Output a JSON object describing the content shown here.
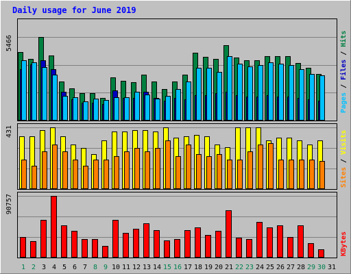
{
  "chart_data": {
    "type": "bar",
    "title": "Daily usage for June 2019",
    "days": [
      "1",
      "2",
      "3",
      "4",
      "5",
      "6",
      "7",
      "8",
      "9",
      "10",
      "11",
      "12",
      "13",
      "14",
      "15",
      "16",
      "17",
      "18",
      "19",
      "20",
      "21",
      "22",
      "23",
      "24",
      "25",
      "26",
      "27",
      "28",
      "29",
      "30",
      "31"
    ],
    "weekend_days": [
      "1",
      "2",
      "8",
      "9",
      "15",
      "16",
      "22",
      "23",
      "29",
      "30"
    ],
    "panels": [
      {
        "key": "hits",
        "max_label": "5466",
        "ymax": 5466,
        "axis_label_parts": [
          {
            "text": "Pages",
            "color": "#00c0ff"
          },
          {
            "text": " / ",
            "color": "#000000"
          },
          {
            "text": "Files",
            "color": "#0000c0"
          },
          {
            "text": " / ",
            "color": "#000000"
          },
          {
            "text": "Hits",
            "color": "#008040"
          }
        ],
        "series": [
          {
            "name": "Hits",
            "color": "#008040",
            "values": [
              4480,
              4030,
              5466,
              4250,
              2560,
              2100,
              1770,
              1770,
              1500,
              2820,
              2600,
              2500,
              2980,
              2560,
              2050,
              2560,
              2980,
              4430,
              4180,
              4050,
              4920,
              4130,
              3930,
              3930,
              4230,
              4230,
              4230,
              3780,
              3430,
              3030,
              0
            ]
          },
          {
            "name": "Files",
            "color": "#0000c0",
            "values": [
              3380,
              3680,
              3930,
              3380,
              1880,
              1380,
              1180,
              1180,
              1080,
              1980,
              1480,
              1480,
              1880,
              1480,
              1280,
              1480,
              1380,
              1680,
              1680,
              1780,
              1880,
              1680,
              1580,
              1580,
              1680,
              1580,
              1580,
              1480,
              1380,
              1280,
              0
            ]
          },
          {
            "name": "Pages",
            "color": "#00c0ff",
            "values": [
              3930,
              3800,
              3500,
              3000,
              1620,
              1530,
              1260,
              1440,
              1350,
              1530,
              1530,
              1890,
              1710,
              1440,
              1620,
              2070,
              2570,
              3450,
              3460,
              3200,
              4220,
              3700,
              3550,
              3640,
              3800,
              3730,
              3640,
              3350,
              3030,
              2950,
              0
            ]
          }
        ]
      },
      {
        "key": "visits",
        "max_label": "431",
        "ymax": 431,
        "axis_label_parts": [
          {
            "text": "Sites",
            "color": "#ff8000"
          },
          {
            "text": " / ",
            "color": "#000000"
          },
          {
            "text": "Visits",
            "color": "#ffff00"
          }
        ],
        "series": [
          {
            "name": "Visits",
            "color": "#ffff00",
            "values": [
              369,
              369,
              412,
              431,
              369,
              309,
              285,
              246,
              340,
              401,
              401,
              412,
              412,
              401,
              431,
              361,
              369,
              376,
              369,
              309,
              291,
              431,
              431,
              431,
              340,
              357,
              361,
              340,
              309,
              340,
              0
            ]
          },
          {
            "name": "Sites",
            "color": "#ff8000",
            "values": [
              206,
              161,
              263,
              309,
              263,
              206,
              161,
              206,
              206,
              231,
              263,
              285,
              263,
              285,
              340,
              231,
              309,
              246,
              231,
              246,
              206,
              206,
              263,
              309,
              320,
              206,
              206,
              206,
              206,
              195,
              0
            ]
          }
        ]
      },
      {
        "key": "kbytes",
        "max_label": "90757",
        "ymax": 90757,
        "axis_label_parts": [
          {
            "text": "KBytes",
            "color": "#ff0000"
          }
        ],
        "series": [
          {
            "name": "KBytes",
            "color": "#ff0000",
            "values": [
              30600,
              24500,
              55100,
              90757,
              47800,
              39200,
              26900,
              26900,
              17200,
              55100,
              36800,
              42800,
              50200,
              40400,
              25700,
              26900,
              40400,
              44100,
              33100,
              39200,
              69800,
              29400,
              26900,
              52600,
              44100,
              47800,
              30600,
              47800,
              20800,
              12200,
              0
            ]
          }
        ]
      }
    ]
  }
}
